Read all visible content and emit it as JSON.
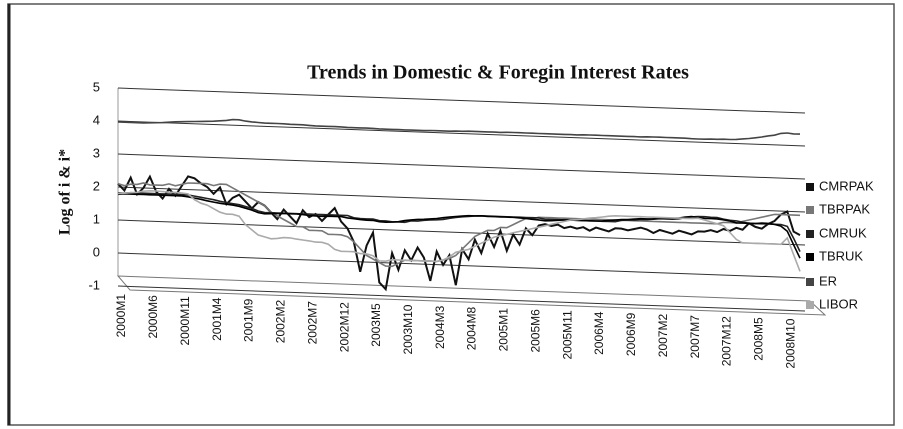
{
  "chart_data": {
    "type": "line",
    "title": "Trends in Domestic & Foregin Interest Rates",
    "y_label": "Log of i & i*",
    "categories": [
      "2000M1",
      null,
      null,
      null,
      null,
      "2000M6",
      null,
      null,
      null,
      null,
      "2000M11",
      null,
      null,
      null,
      null,
      "2001M4",
      null,
      null,
      null,
      null,
      "2001M9",
      null,
      null,
      null,
      null,
      "2002M2",
      null,
      null,
      null,
      null,
      "2002M7",
      null,
      null,
      null,
      null,
      "2002M12",
      null,
      null,
      null,
      null,
      "2003M5",
      null,
      null,
      null,
      null,
      "2003M10",
      null,
      null,
      null,
      null,
      "2004M3",
      null,
      null,
      null,
      null,
      "2004M8",
      null,
      null,
      null,
      null,
      "2005M1",
      null,
      null,
      null,
      null,
      "2005M6",
      null,
      null,
      null,
      null,
      "2005M11",
      null,
      null,
      null,
      null,
      "2006M4",
      null,
      null,
      null,
      null,
      "2006M9",
      null,
      null,
      null,
      null,
      "2007M2",
      null,
      null,
      null,
      null,
      "2007M7",
      null,
      null,
      null,
      null,
      "2007M12",
      null,
      null,
      null,
      null,
      "2008M5",
      null,
      null,
      null,
      null,
      "2008M10",
      null,
      null
    ],
    "ylim": [
      -1,
      5
    ],
    "yticks": [
      -1,
      0,
      1,
      2,
      3,
      4,
      5
    ],
    "grid": true,
    "series": [
      {
        "name": "CMRPAK",
        "color": "#111111",
        "values": [
          2.1,
          1.9,
          2.3,
          1.8,
          2.0,
          2.35,
          1.9,
          1.7,
          2.0,
          1.8,
          2.1,
          2.4,
          2.35,
          2.2,
          2.1,
          1.9,
          2.1,
          1.6,
          1.8,
          1.9,
          1.7,
          1.5,
          1.7,
          1.6,
          1.4,
          1.2,
          1.5,
          1.3,
          1.1,
          1.5,
          1.3,
          1.4,
          1.2,
          1.4,
          1.6,
          1.2,
          1.0,
          0.6,
          -0.3,
          0.5,
          0.9,
          -0.6,
          -0.8,
          0.3,
          -0.2,
          0.4,
          0.1,
          0.5,
          0.2,
          -0.5,
          0.4,
          0.0,
          0.3,
          -0.6,
          0.5,
          0.2,
          0.8,
          0.4,
          1.0,
          0.6,
          1.1,
          0.5,
          1.0,
          0.7,
          1.2,
          1.0,
          1.3,
          1.35,
          1.3,
          1.35,
          1.25,
          1.3,
          1.25,
          1.3,
          1.2,
          1.3,
          1.25,
          1.2,
          1.3,
          1.3,
          1.25,
          1.3,
          1.35,
          1.3,
          1.2,
          1.3,
          1.25,
          1.2,
          1.3,
          1.25,
          1.2,
          1.3,
          1.3,
          1.35,
          1.3,
          1.4,
          1.35,
          1.45,
          1.4,
          1.6,
          1.5,
          1.45,
          1.6,
          1.7,
          1.9,
          2.0,
          1.4,
          1.3
        ]
      },
      {
        "name": "TBRPAK",
        "color": "#777777",
        "values": [
          2.1,
          2.05,
          2.1,
          2.1,
          2.15,
          2.1,
          2.1,
          2.1,
          2.15,
          2.1,
          2.15,
          2.2,
          2.2,
          2.2,
          2.2,
          2.15,
          2.2,
          2.2,
          2.1,
          2.0,
          1.9,
          1.8,
          1.7,
          1.6,
          1.4,
          1.3,
          1.2,
          1.1,
          1.0,
          1.0,
          0.9,
          0.9,
          0.9,
          0.8,
          0.8,
          0.8,
          0.75,
          0.6,
          0.4,
          0.2,
          0.1,
          0.0,
          -0.1,
          -0.1,
          0.0,
          0.1,
          0.1,
          0.1,
          0.1,
          0.1,
          0.1,
          0.15,
          0.2,
          0.3,
          0.5,
          0.7,
          0.9,
          1.0,
          1.1,
          1.1,
          1.2,
          1.2,
          1.3,
          1.4,
          1.5,
          1.5,
          1.55,
          1.55,
          1.55,
          1.55,
          1.55,
          1.55,
          1.55,
          1.55,
          1.55,
          1.55,
          1.55,
          1.55,
          1.55,
          1.55,
          1.55,
          1.55,
          1.55,
          1.55,
          1.55,
          1.55,
          1.55,
          1.55,
          1.55,
          1.55,
          1.55,
          1.55,
          1.55,
          1.55,
          1.55,
          1.6,
          1.6,
          1.6,
          1.65,
          1.7,
          1.75,
          1.8,
          1.85,
          1.9,
          1.9,
          1.9,
          1.9,
          1.9
        ]
      },
      {
        "name": "CMRUK",
        "color": "#222222",
        "values": [
          1.82,
          1.82,
          1.84,
          1.84,
          1.84,
          1.84,
          1.84,
          1.84,
          1.84,
          1.84,
          1.84,
          1.84,
          1.81,
          1.78,
          1.75,
          1.72,
          1.68,
          1.65,
          1.62,
          1.6,
          1.55,
          1.5,
          1.43,
          1.39,
          1.39,
          1.39,
          1.39,
          1.39,
          1.39,
          1.39,
          1.39,
          1.39,
          1.39,
          1.39,
          1.39,
          1.39,
          1.39,
          1.33,
          1.31,
          1.31,
          1.31,
          1.27,
          1.27,
          1.25,
          1.25,
          1.25,
          1.3,
          1.3,
          1.33,
          1.35,
          1.36,
          1.38,
          1.42,
          1.45,
          1.48,
          1.5,
          1.52,
          1.53,
          1.53,
          1.53,
          1.53,
          1.53,
          1.53,
          1.53,
          1.53,
          1.53,
          1.53,
          1.5,
          1.5,
          1.5,
          1.5,
          1.5,
          1.5,
          1.5,
          1.5,
          1.5,
          1.5,
          1.5,
          1.5,
          1.55,
          1.57,
          1.57,
          1.6,
          1.6,
          1.62,
          1.64,
          1.64,
          1.64,
          1.66,
          1.7,
          1.73,
          1.75,
          1.75,
          1.74,
          1.74,
          1.7,
          1.67,
          1.66,
          1.63,
          1.6,
          1.6,
          1.6,
          1.6,
          1.6,
          1.6,
          1.55,
          1.2,
          0.8
        ]
      },
      {
        "name": "TBRUK",
        "color": "#000000",
        "values": [
          1.78,
          1.8,
          1.8,
          1.8,
          1.8,
          1.8,
          1.8,
          1.8,
          1.8,
          1.8,
          1.8,
          1.78,
          1.75,
          1.72,
          1.68,
          1.65,
          1.62,
          1.6,
          1.58,
          1.55,
          1.5,
          1.45,
          1.38,
          1.35,
          1.36,
          1.37,
          1.38,
          1.38,
          1.38,
          1.37,
          1.35,
          1.34,
          1.34,
          1.35,
          1.35,
          1.35,
          1.32,
          1.3,
          1.28,
          1.27,
          1.27,
          1.24,
          1.23,
          1.24,
          1.26,
          1.3,
          1.33,
          1.35,
          1.36,
          1.38,
          1.4,
          1.43,
          1.46,
          1.48,
          1.5,
          1.52,
          1.52,
          1.53,
          1.52,
          1.52,
          1.52,
          1.52,
          1.52,
          1.51,
          1.5,
          1.48,
          1.47,
          1.45,
          1.46,
          1.48,
          1.5,
          1.5,
          1.5,
          1.5,
          1.5,
          1.5,
          1.51,
          1.53,
          1.55,
          1.57,
          1.58,
          1.6,
          1.62,
          1.62,
          1.63,
          1.65,
          1.66,
          1.66,
          1.68,
          1.72,
          1.74,
          1.72,
          1.7,
          1.7,
          1.7,
          1.68,
          1.65,
          1.6,
          1.6,
          1.6,
          1.6,
          1.62,
          1.62,
          1.6,
          1.55,
          1.4,
          1.0,
          0.6
        ]
      },
      {
        "name": "ER",
        "color": "#444444",
        "values": [
          3.97,
          3.97,
          3.97,
          3.97,
          3.97,
          3.98,
          3.99,
          4.0,
          4.02,
          4.04,
          4.05,
          4.06,
          4.07,
          4.08,
          4.09,
          4.1,
          4.12,
          4.14,
          4.17,
          4.17,
          4.14,
          4.12,
          4.11,
          4.1,
          4.1,
          4.1,
          4.1,
          4.09,
          4.09,
          4.09,
          4.08,
          4.07,
          4.07,
          4.07,
          4.07,
          4.07,
          4.06,
          4.06,
          4.06,
          4.06,
          4.06,
          4.05,
          4.05,
          4.05,
          4.05,
          4.05,
          4.05,
          4.05,
          4.05,
          4.06,
          4.06,
          4.06,
          4.06,
          4.07,
          4.07,
          4.08,
          4.08,
          4.08,
          4.08,
          4.08,
          4.08,
          4.09,
          4.09,
          4.09,
          4.09,
          4.09,
          4.09,
          4.09,
          4.09,
          4.09,
          4.09,
          4.09,
          4.09,
          4.1,
          4.1,
          4.1,
          4.1,
          4.1,
          4.1,
          4.1,
          4.1,
          4.1,
          4.1,
          4.11,
          4.11,
          4.11,
          4.11,
          4.11,
          4.11,
          4.11,
          4.1,
          4.1,
          4.1,
          4.11,
          4.11,
          4.12,
          4.12,
          4.13,
          4.15,
          4.17,
          4.2,
          4.23,
          4.27,
          4.3,
          4.36,
          4.38,
          4.36,
          4.36
        ]
      },
      {
        "name": "LIBOR",
        "color": "#aaaaaa",
        "values": [
          1.8,
          1.82,
          1.84,
          1.86,
          1.9,
          1.92,
          1.92,
          1.91,
          1.9,
          1.9,
          1.89,
          1.87,
          1.7,
          1.6,
          1.55,
          1.45,
          1.35,
          1.3,
          1.3,
          1.25,
          1.0,
          0.85,
          0.7,
          0.65,
          0.6,
          0.62,
          0.65,
          0.65,
          0.62,
          0.6,
          0.58,
          0.55,
          0.55,
          0.5,
          0.35,
          0.3,
          0.3,
          0.3,
          0.25,
          0.25,
          0.2,
          0.05,
          0.05,
          0.1,
          0.1,
          0.1,
          0.1,
          0.1,
          0.1,
          0.1,
          0.1,
          0.15,
          0.25,
          0.4,
          0.45,
          0.5,
          0.6,
          0.7,
          0.8,
          0.9,
          0.95,
          1.0,
          1.05,
          1.1,
          1.15,
          1.2,
          1.25,
          1.3,
          1.35,
          1.4,
          1.45,
          1.5,
          1.52,
          1.55,
          1.58,
          1.6,
          1.63,
          1.66,
          1.68,
          1.68,
          1.68,
          1.68,
          1.68,
          1.68,
          1.68,
          1.68,
          1.68,
          1.68,
          1.68,
          1.68,
          1.68,
          1.7,
          1.65,
          1.6,
          1.55,
          1.5,
          1.3,
          1.1,
          1.0,
          1.0,
          1.0,
          1.0,
          1.0,
          1.0,
          1.0,
          1.2,
          0.7,
          0.2
        ]
      }
    ]
  }
}
